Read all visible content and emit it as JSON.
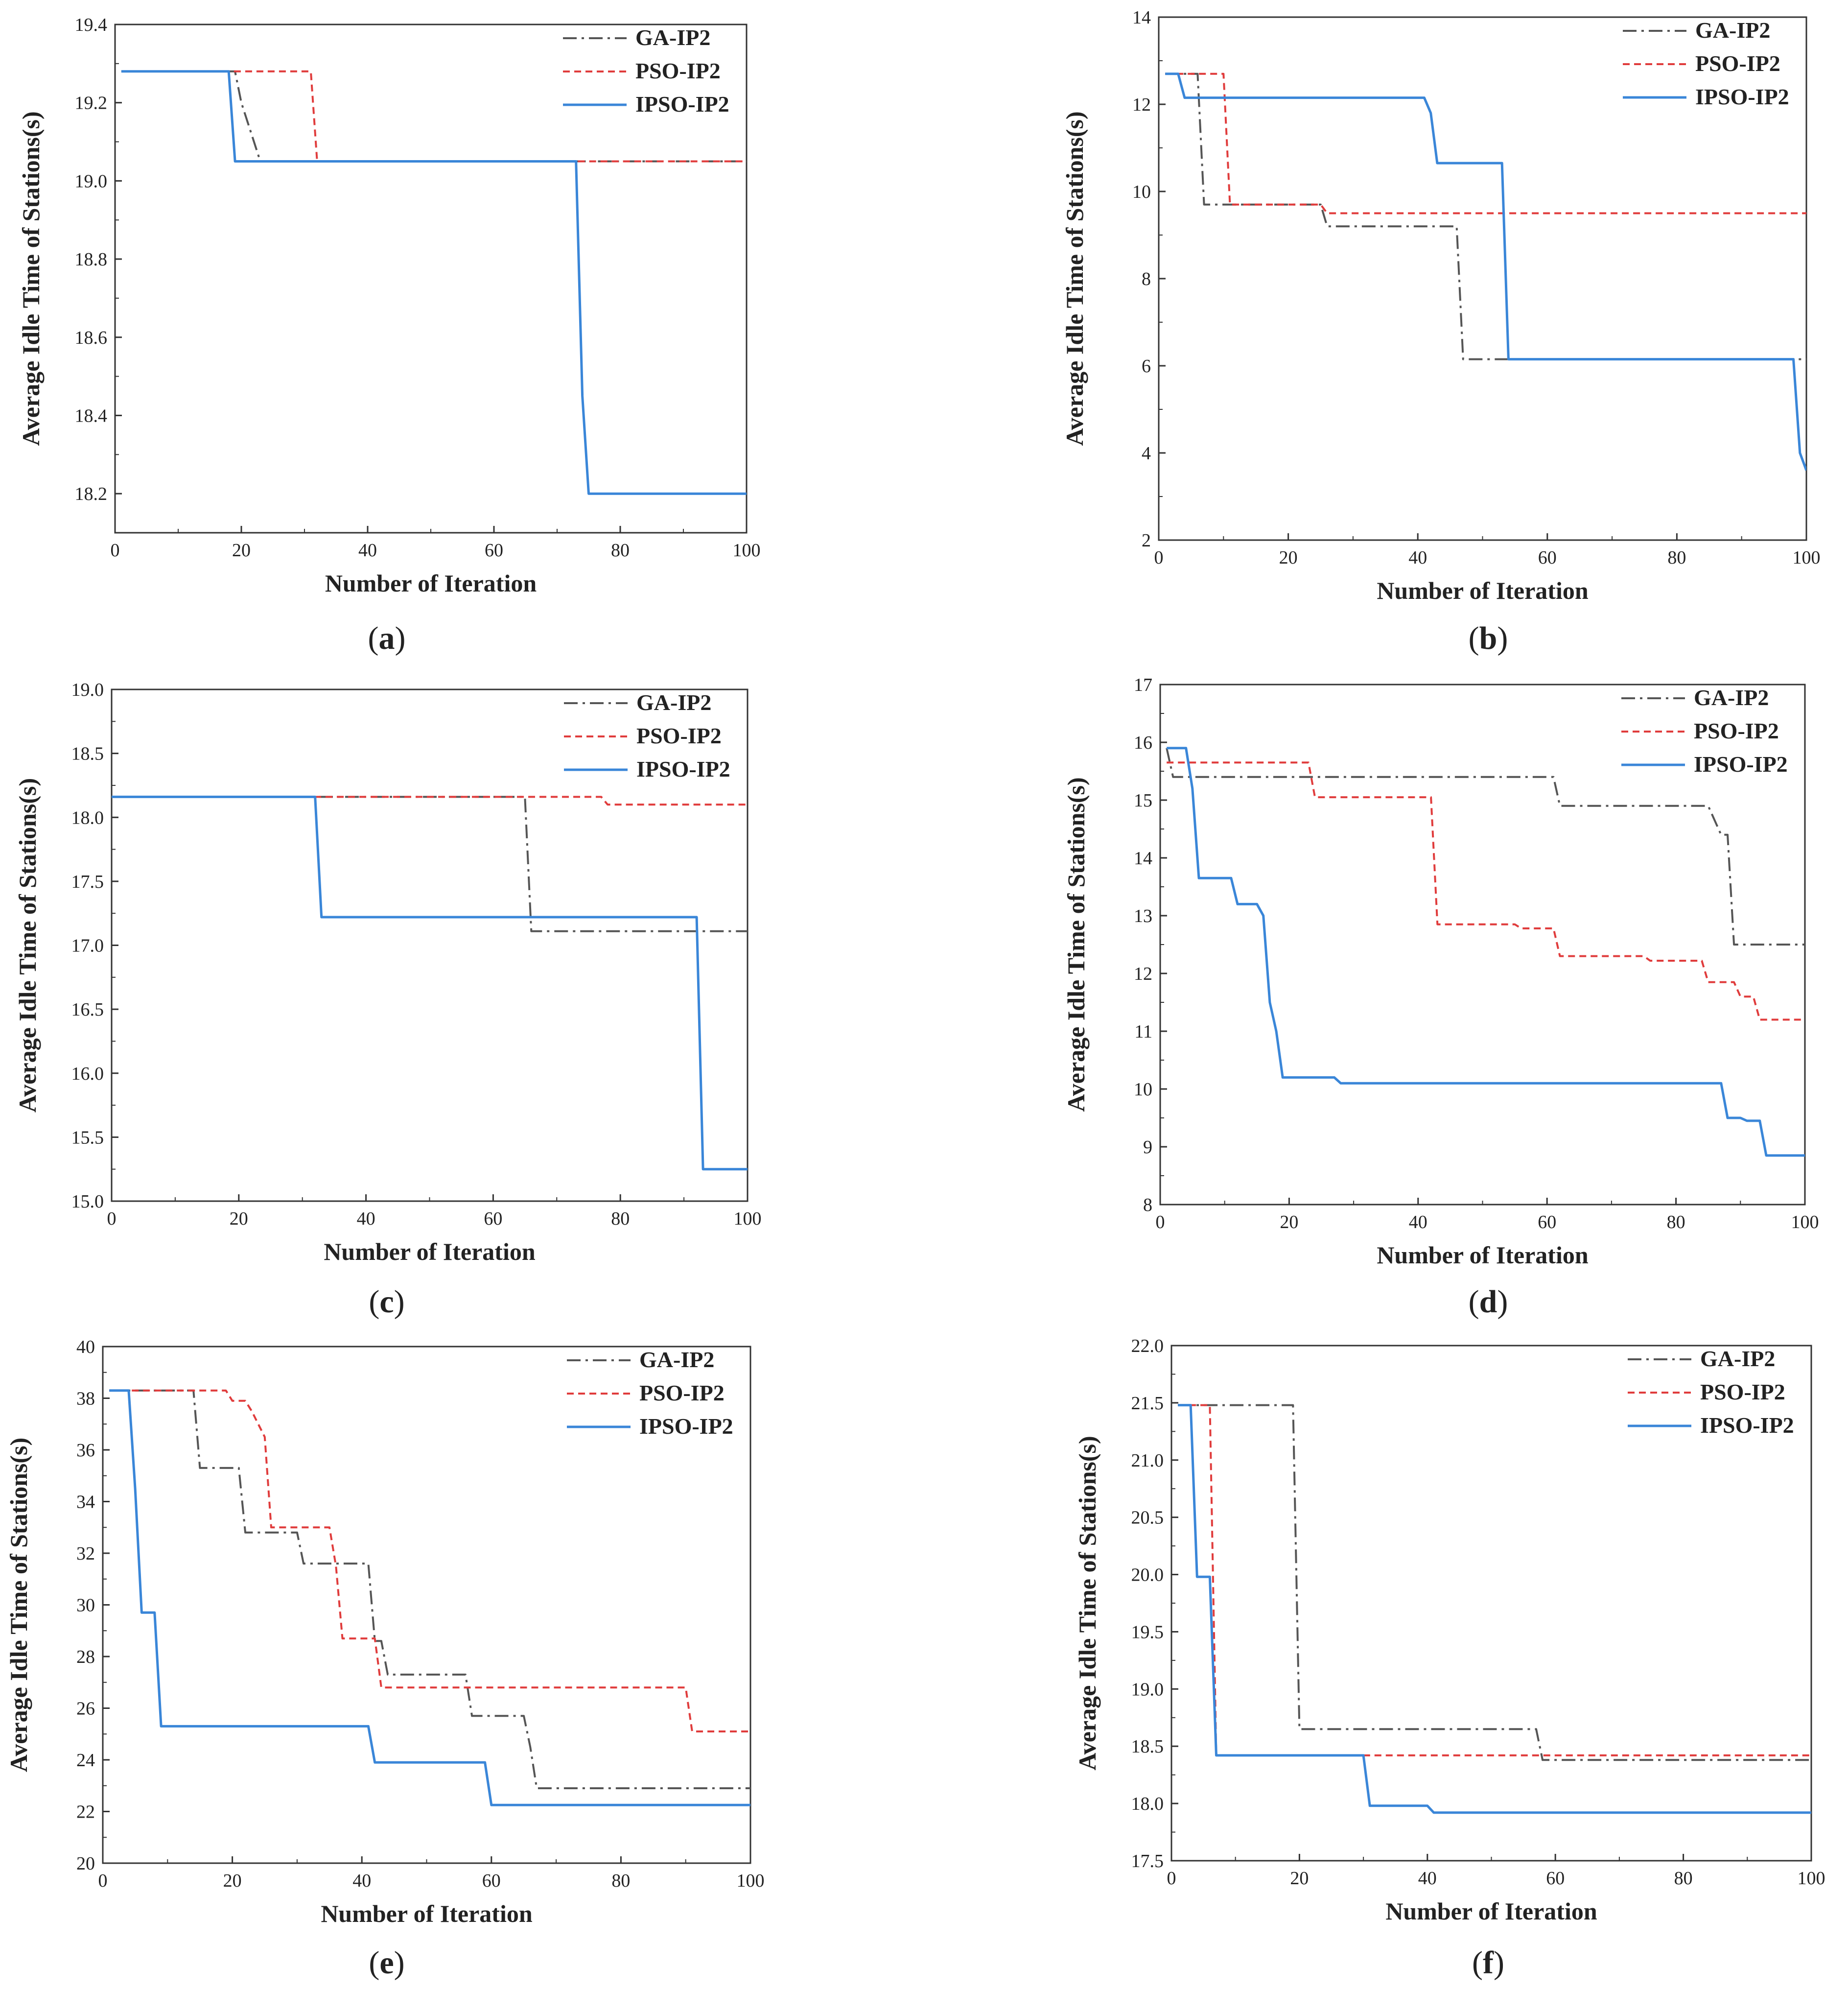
{
  "figure": {
    "legend_labels": [
      "GA-IP2",
      "PSO-IP2",
      "IPSO-IP2"
    ],
    "series_colors": {
      "GA-IP2": "#555555",
      "PSO-IP2": "#e03c3c",
      "IPSO-IP2": "#3a86d8"
    }
  },
  "chart_data": [
    {
      "type": "line",
      "caption": "a",
      "xlabel": "Number of Iteration",
      "ylabel": "Average Idle Time of Stations(s)",
      "xlim": [
        0,
        100
      ],
      "ylim": [
        18.1,
        19.4
      ],
      "xticks": [
        0,
        20,
        40,
        60,
        80,
        100
      ],
      "yticks": [
        18.2,
        18.4,
        18.6,
        18.8,
        19.0,
        19.2,
        19.4
      ],
      "ytick_labels": [
        "18.2",
        "18.4",
        "18.6",
        "18.8",
        "19.0",
        "19.2",
        "19.4"
      ],
      "legend": "top-right",
      "series": [
        {
          "name": "GA-IP2",
          "x": [
            1,
            19,
            20,
            21,
            22,
            23,
            100
          ],
          "y": [
            19.28,
            19.28,
            19.2,
            19.15,
            19.1,
            19.05,
            19.05
          ]
        },
        {
          "name": "PSO-IP2",
          "x": [
            1,
            31,
            32,
            100
          ],
          "y": [
            19.28,
            19.28,
            19.05,
            19.05
          ]
        },
        {
          "name": "IPSO-IP2",
          "x": [
            1,
            18,
            19,
            73,
            74,
            75,
            100
          ],
          "y": [
            19.28,
            19.28,
            19.05,
            19.05,
            18.45,
            18.2,
            18.2
          ]
        }
      ]
    },
    {
      "type": "line",
      "caption": "b",
      "xlabel": "Number of Iteration",
      "ylabel": "Average Idle Time of Stations(s)",
      "xlim": [
        0,
        100
      ],
      "ylim": [
        2,
        14
      ],
      "xticks": [
        0,
        20,
        40,
        60,
        80,
        100
      ],
      "yticks": [
        2,
        4,
        6,
        8,
        10,
        12,
        14
      ],
      "ytick_labels": [
        "2",
        "4",
        "6",
        "8",
        "10",
        "12",
        "14"
      ],
      "legend": "top-right",
      "series": [
        {
          "name": "GA-IP2",
          "x": [
            1,
            6,
            7,
            25,
            26,
            46,
            47,
            100
          ],
          "y": [
            12.7,
            12.7,
            9.7,
            9.7,
            9.2,
            9.2,
            6.15,
            6.15
          ]
        },
        {
          "name": "PSO-IP2",
          "x": [
            1,
            10,
            11,
            25,
            26,
            100
          ],
          "y": [
            12.7,
            12.7,
            9.7,
            9.7,
            9.5,
            9.5
          ]
        },
        {
          "name": "IPSO-IP2",
          "x": [
            1,
            3,
            4,
            41,
            42,
            43,
            53,
            54,
            98,
            99,
            100
          ],
          "y": [
            12.7,
            12.7,
            12.15,
            12.15,
            11.8,
            10.65,
            10.65,
            6.15,
            6.15,
            4.0,
            3.6
          ]
        }
      ]
    },
    {
      "type": "line",
      "caption": "c",
      "xlabel": "Number of Iteration",
      "ylabel": "Average Idle Time of Stations(s)",
      "xlim": [
        0,
        100
      ],
      "ylim": [
        15.0,
        19.0
      ],
      "xticks": [
        0,
        20,
        40,
        60,
        80,
        100
      ],
      "yticks": [
        15.0,
        15.5,
        16.0,
        16.5,
        17.0,
        17.5,
        18.0,
        18.5,
        19.0
      ],
      "ytick_labels": [
        "15.0",
        "15.5",
        "16.0",
        "16.5",
        "17.0",
        "17.5",
        "18.0",
        "18.5",
        "19.0"
      ],
      "legend": "top-right",
      "series": [
        {
          "name": "GA-IP2",
          "x": [
            0,
            65,
            66,
            100
          ],
          "y": [
            18.16,
            18.16,
            17.11,
            17.11
          ]
        },
        {
          "name": "PSO-IP2",
          "x": [
            0,
            77,
            78,
            100
          ],
          "y": [
            18.16,
            18.16,
            18.1,
            18.1
          ]
        },
        {
          "name": "IPSO-IP2",
          "x": [
            0,
            32,
            33,
            92,
            93,
            100
          ],
          "y": [
            18.16,
            18.16,
            17.22,
            17.22,
            15.25,
            15.25
          ]
        }
      ]
    },
    {
      "type": "line",
      "caption": "d",
      "xlabel": "Number of Iteration",
      "ylabel": "Average Idle Time of Stations(s)",
      "xlim": [
        0,
        100
      ],
      "ylim": [
        8,
        17
      ],
      "xticks": [
        0,
        20,
        40,
        60,
        80,
        100
      ],
      "yticks": [
        8,
        9,
        10,
        11,
        12,
        13,
        14,
        15,
        16,
        17
      ],
      "ytick_labels": [
        "8",
        "9",
        "10",
        "11",
        "12",
        "13",
        "14",
        "15",
        "16",
        "17"
      ],
      "legend": "top-right",
      "series": [
        {
          "name": "GA-IP2",
          "x": [
            1,
            2,
            61,
            62,
            85,
            87,
            88,
            89,
            100
          ],
          "y": [
            15.9,
            15.4,
            15.4,
            14.9,
            14.9,
            14.4,
            14.4,
            12.5,
            12.5
          ]
        },
        {
          "name": "PSO-IP2",
          "x": [
            1,
            23,
            24,
            42,
            43,
            55,
            56,
            61,
            62,
            75,
            76,
            84,
            85,
            89,
            90,
            92,
            93,
            100
          ],
          "y": [
            15.65,
            15.65,
            15.05,
            15.05,
            12.85,
            12.85,
            12.78,
            12.78,
            12.3,
            12.3,
            12.22,
            12.22,
            11.85,
            11.85,
            11.6,
            11.6,
            11.2,
            11.2
          ]
        },
        {
          "name": "IPSO-IP2",
          "x": [
            1,
            4,
            5,
            6,
            11,
            12,
            15,
            16,
            17,
            18,
            19,
            27,
            28,
            87,
            88,
            90,
            91,
            93,
            94,
            100
          ],
          "y": [
            15.9,
            15.9,
            15.2,
            13.65,
            13.65,
            13.2,
            13.2,
            13.0,
            11.5,
            11.0,
            10.2,
            10.2,
            10.1,
            10.1,
            9.5,
            9.5,
            9.45,
            9.45,
            8.85,
            8.85
          ]
        }
      ]
    },
    {
      "type": "line",
      "caption": "e",
      "xlabel": "Number of Iteration",
      "ylabel": "Average Idle Time of Stations(s)",
      "xlim": [
        0,
        100
      ],
      "ylim": [
        20,
        40
      ],
      "xticks": [
        0,
        20,
        40,
        60,
        80,
        100
      ],
      "yticks": [
        20,
        22,
        24,
        26,
        28,
        30,
        32,
        34,
        36,
        38,
        40
      ],
      "ytick_labels": [
        "20",
        "22",
        "24",
        "26",
        "28",
        "30",
        "32",
        "34",
        "36",
        "38",
        "40"
      ],
      "legend": "top-right",
      "series": [
        {
          "name": "GA-IP2",
          "x": [
            1,
            14,
            15,
            21,
            22,
            30,
            31,
            41,
            42,
            43,
            44,
            56,
            57,
            65,
            66,
            67,
            100
          ],
          "y": [
            38.3,
            38.3,
            35.3,
            35.3,
            32.8,
            32.8,
            31.6,
            31.6,
            28.6,
            28.6,
            27.3,
            27.3,
            25.7,
            25.7,
            24.5,
            22.9,
            22.9
          ]
        },
        {
          "name": "PSO-IP2",
          "x": [
            1,
            19,
            20,
            22,
            23,
            25,
            26,
            35,
            36,
            37,
            42,
            43,
            90,
            91,
            100
          ],
          "y": [
            38.3,
            38.3,
            37.9,
            37.9,
            37.5,
            36.5,
            33.0,
            33.0,
            31.5,
            28.7,
            28.7,
            26.8,
            26.8,
            25.1,
            25.1
          ]
        },
        {
          "name": "IPSO-IP2",
          "x": [
            1,
            4,
            5,
            6,
            8,
            9,
            41,
            42,
            59,
            60,
            100
          ],
          "y": [
            38.3,
            38.3,
            34.5,
            29.7,
            29.7,
            25.3,
            25.3,
            23.9,
            23.9,
            22.25,
            22.25
          ]
        }
      ]
    },
    {
      "type": "line",
      "caption": "f",
      "xlabel": "Number of Iteration",
      "ylabel": "Average Idle Time of Stations(s)",
      "xlim": [
        0,
        100
      ],
      "ylim": [
        17.5,
        22.0
      ],
      "xticks": [
        0,
        20,
        40,
        60,
        80,
        100
      ],
      "yticks": [
        17.5,
        18.0,
        18.5,
        19.0,
        19.5,
        20.0,
        20.5,
        21.0,
        21.5,
        22.0
      ],
      "ytick_labels": [
        "17.5",
        "18.0",
        "18.5",
        "19.0",
        "19.5",
        "20.0",
        "20.5",
        "21.0",
        "21.5",
        "22.0"
      ],
      "legend": "top-right",
      "series": [
        {
          "name": "GA-IP2",
          "x": [
            1,
            19,
            20,
            57,
            58,
            100
          ],
          "y": [
            21.48,
            21.48,
            18.65,
            18.65,
            18.38,
            18.38
          ]
        },
        {
          "name": "PSO-IP2",
          "x": [
            1,
            6,
            7,
            100
          ],
          "y": [
            21.48,
            21.48,
            18.42,
            18.42
          ]
        },
        {
          "name": "IPSO-IP2",
          "x": [
            1,
            3,
            4,
            6,
            7,
            30,
            31,
            40,
            41,
            100
          ],
          "y": [
            21.48,
            21.48,
            19.98,
            19.98,
            18.42,
            18.42,
            17.98,
            17.98,
            17.92,
            17.92
          ]
        }
      ]
    }
  ]
}
